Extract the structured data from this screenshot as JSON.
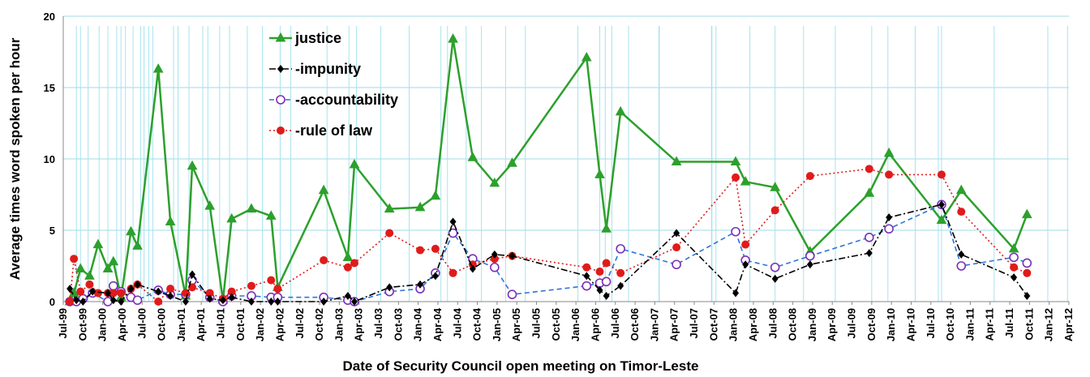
{
  "chart_data": {
    "type": "line",
    "title": "",
    "xlabel": "Date of Security Council open meeting on Timor-Leste",
    "ylabel": "Average times word spoken per hour",
    "ylim": [
      0,
      20
    ],
    "yticks": [
      "0",
      "5",
      "10",
      "15",
      "20"
    ],
    "xlim": [
      "1999-07",
      "2012-04"
    ],
    "xticks": [
      "Jul-99",
      "Oct-99",
      "Jan-00",
      "Apr-00",
      "Jul-00",
      "Oct-00",
      "Jan-01",
      "Apr-01",
      "Jul-01",
      "Oct-01",
      "Jan-02",
      "Apr-02",
      "Jul-02",
      "Oct-02",
      "Jan-03",
      "Apr-03",
      "Jul-03",
      "Oct-03",
      "Jan-04",
      "Apr-04",
      "Jul-04",
      "Oct-04",
      "Jan-05",
      "Apr-05",
      "Jul-05",
      "Oct-05",
      "Jan-06",
      "Apr-06",
      "Jul-06",
      "Oct-06",
      "Jan-07",
      "Apr-07",
      "Jul-07",
      "Oct-07",
      "Jan-08",
      "Apr-08",
      "Jul-08",
      "Oct-08",
      "Jan-09",
      "Apr-09",
      "Jul-09",
      "Oct-09",
      "Jan-10",
      "Apr-10",
      "Jul-10",
      "Oct-10",
      "Jan-11",
      "Apr-11",
      "Jul-11",
      "Oct-11",
      "Jan-12",
      "Apr-12"
    ],
    "grid": "horizontal",
    "legend_position": "top-left",
    "x": [
      "1999-09-01",
      "1999-09-20",
      "1999-10-25",
      "1999-12-15",
      "2000-01-25",
      "2000-03-05",
      "2000-03-25",
      "2000-04-15",
      "2000-05-20",
      "2000-06-25",
      "2000-07-10",
      "2000-08-01",
      "2000-08-20",
      "2000-11-25",
      "2000-12-15",
      "2001-02-05",
      "2001-04-08",
      "2001-05-01",
      "2001-06-25",
      "2001-08-10",
      "2001-11-01",
      "2002-01-10",
      "2002-04-01",
      "2002-05-20",
      "2002-11-05",
      "2003-02-15",
      "2003-03-20",
      "2003-07-10",
      "2003-11-20",
      "2004-04-15",
      "2004-05-15",
      "2004-08-10",
      "2004-10-20",
      "2005-02-10",
      "2005-05-10",
      "2006-01-10",
      "2006-04-20",
      "2006-05-15",
      "2006-06-15",
      "2006-09-01",
      "2007-01-20",
      "2007-01-22",
      "2007-09-20",
      "2007-09-22",
      "2007-10-10",
      "2008-03-15",
      "2008-07-10",
      "2008-11-20",
      "2009-04-15",
      "2009-10-01",
      "2009-12-15",
      "2010-04-20",
      "2010-08-05",
      "2010-08-20",
      "2011-04-20",
      "2011-12-25",
      "2012-03-25"
    ],
    "series": [
      {
        "name": "justice",
        "color": "#2ca02c",
        "marker": "triangle",
        "line": "solid",
        "points": [
          [
            "1999-08-01",
            0.0
          ],
          [
            "1999-08-20",
            0.6
          ],
          [
            "1999-09-20",
            2.3
          ],
          [
            "1999-11-01",
            1.8
          ],
          [
            "1999-12-10",
            4.0
          ],
          [
            "2000-01-25",
            2.3
          ],
          [
            "2000-02-20",
            2.8
          ],
          [
            "2000-03-25",
            0.3
          ],
          [
            "2000-05-10",
            4.9
          ],
          [
            "2000-06-10",
            3.9
          ],
          [
            "2000-09-15",
            16.3
          ],
          [
            "2000-11-10",
            5.6
          ],
          [
            "2001-01-20",
            0.4
          ],
          [
            "2001-02-20",
            9.5
          ],
          [
            "2001-05-10",
            6.7
          ],
          [
            "2001-07-10",
            0.1
          ],
          [
            "2001-08-20",
            5.8
          ],
          [
            "2001-11-20",
            6.5
          ],
          [
            "2002-02-20",
            6.0
          ],
          [
            "2002-03-20",
            1.0
          ],
          [
            "2002-10-20",
            7.8
          ],
          [
            "2003-02-10",
            3.1
          ],
          [
            "2003-03-10",
            9.6
          ],
          [
            "2003-08-20",
            6.5
          ],
          [
            "2004-01-10",
            6.6
          ],
          [
            "2004-03-20",
            7.4
          ],
          [
            "2004-06-10",
            18.4
          ],
          [
            "2004-09-10",
            10.1
          ],
          [
            "2004-12-20",
            8.3
          ],
          [
            "2005-03-10",
            9.7
          ],
          [
            "2006-02-20",
            17.1
          ],
          [
            "2006-04-20",
            8.9
          ],
          [
            "2006-05-20",
            5.1
          ],
          [
            "2006-07-25",
            13.3
          ],
          [
            "2007-04-10",
            9.8
          ],
          [
            "2008-01-10",
            9.8
          ],
          [
            "2008-02-25",
            8.4
          ],
          [
            "2008-07-10",
            8.0
          ],
          [
            "2008-12-20",
            3.5
          ],
          [
            "2009-09-20",
            7.6
          ],
          [
            "2009-12-20",
            10.4
          ],
          [
            "2010-08-20",
            5.7
          ],
          [
            "2010-11-20",
            7.8
          ],
          [
            "2011-07-20",
            3.7
          ],
          [
            "2011-09-20",
            6.1
          ]
        ]
      },
      {
        "name": "impunity",
        "color": "#000000",
        "marker": "diamond",
        "line": "dashdot",
        "points": [
          [
            "1999-08-01",
            0.9
          ],
          [
            "1999-09-01",
            0.1
          ],
          [
            "1999-10-01",
            0.0
          ],
          [
            "1999-11-15",
            0.7
          ],
          [
            "2000-01-25",
            0.6
          ],
          [
            "2000-02-20",
            0.1
          ],
          [
            "2000-03-25",
            0.0
          ],
          [
            "2000-05-10",
            0.9
          ],
          [
            "2000-06-10",
            1.2
          ],
          [
            "2000-09-15",
            0.7
          ],
          [
            "2000-11-10",
            0.4
          ],
          [
            "2001-01-20",
            0.0
          ],
          [
            "2001-02-20",
            1.9
          ],
          [
            "2001-05-10",
            0.2
          ],
          [
            "2001-07-10",
            0.1
          ],
          [
            "2001-08-20",
            0.3
          ],
          [
            "2001-11-20",
            0.0
          ],
          [
            "2002-02-20",
            0.0
          ],
          [
            "2002-03-20",
            0.0
          ],
          [
            "2002-10-20",
            0.0
          ],
          [
            "2003-02-10",
            0.4
          ],
          [
            "2003-03-10",
            0.0
          ],
          [
            "2003-08-20",
            1.0
          ],
          [
            "2004-01-10",
            1.2
          ],
          [
            "2004-03-20",
            1.8
          ],
          [
            "2004-06-10",
            5.6
          ],
          [
            "2004-09-10",
            2.3
          ],
          [
            "2004-12-20",
            3.3
          ],
          [
            "2005-03-10",
            3.2
          ],
          [
            "2006-02-20",
            1.8
          ],
          [
            "2006-04-20",
            0.8
          ],
          [
            "2006-05-20",
            0.4
          ],
          [
            "2006-07-25",
            1.1
          ],
          [
            "2007-04-10",
            4.8
          ],
          [
            "2008-01-10",
            0.6
          ],
          [
            "2008-02-25",
            2.6
          ],
          [
            "2008-07-10",
            1.6
          ],
          [
            "2008-12-20",
            2.6
          ],
          [
            "2009-09-20",
            3.4
          ],
          [
            "2009-12-20",
            5.9
          ],
          [
            "2010-08-20",
            6.8
          ],
          [
            "2010-11-20",
            3.3
          ],
          [
            "2011-07-20",
            1.7
          ],
          [
            "2011-09-20",
            0.4
          ]
        ]
      },
      {
        "name": "accountability",
        "color": "#2e75d6",
        "marker": "open-circle",
        "line": "dashed",
        "points": [
          [
            "1999-08-01",
            0.0
          ],
          [
            "1999-09-01",
            0.0
          ],
          [
            "1999-10-01",
            0.2
          ],
          [
            "1999-11-15",
            0.6
          ],
          [
            "2000-01-25",
            0.0
          ],
          [
            "2000-02-20",
            1.1
          ],
          [
            "2000-03-25",
            0.7
          ],
          [
            "2000-05-10",
            0.3
          ],
          [
            "2000-06-10",
            0.1
          ],
          [
            "2000-09-15",
            0.8
          ],
          [
            "2000-11-10",
            0.5
          ],
          [
            "2001-01-20",
            0.5
          ],
          [
            "2001-02-20",
            1.5
          ],
          [
            "2001-05-10",
            0.3
          ],
          [
            "2001-07-10",
            0.0
          ],
          [
            "2001-08-20",
            0.4
          ],
          [
            "2001-11-20",
            0.4
          ],
          [
            "2002-02-20",
            0.3
          ],
          [
            "2002-03-20",
            0.3
          ],
          [
            "2002-10-20",
            0.3
          ],
          [
            "2003-02-10",
            0.1
          ],
          [
            "2003-03-10",
            0.0
          ],
          [
            "2003-08-20",
            0.7
          ],
          [
            "2004-01-10",
            0.9
          ],
          [
            "2004-03-20",
            2.0
          ],
          [
            "2004-06-10",
            4.8
          ],
          [
            "2004-09-10",
            3.0
          ],
          [
            "2004-12-20",
            2.4
          ],
          [
            "2005-03-10",
            0.5
          ],
          [
            "2006-02-20",
            1.1
          ],
          [
            "2006-04-20",
            1.3
          ],
          [
            "2006-05-20",
            1.4
          ],
          [
            "2006-07-25",
            3.7
          ],
          [
            "2007-04-10",
            2.6
          ],
          [
            "2008-01-10",
            4.9
          ],
          [
            "2008-02-25",
            2.9
          ],
          [
            "2008-07-10",
            2.4
          ],
          [
            "2008-12-20",
            3.2
          ],
          [
            "2009-09-20",
            4.5
          ],
          [
            "2009-12-20",
            5.1
          ],
          [
            "2010-08-20",
            6.8
          ],
          [
            "2010-11-20",
            2.5
          ],
          [
            "2011-07-20",
            3.1
          ],
          [
            "2011-09-20",
            2.7
          ]
        ]
      },
      {
        "name": "rule of law",
        "color": "#e01b1b",
        "marker": "filled-circle",
        "line": "dotted",
        "points": [
          [
            "1999-08-01",
            0.0
          ],
          [
            "1999-08-20",
            3.0
          ],
          [
            "1999-09-20",
            0.7
          ],
          [
            "1999-11-01",
            1.2
          ],
          [
            "1999-12-10",
            0.6
          ],
          [
            "2000-01-25",
            0.6
          ],
          [
            "2000-02-20",
            0.6
          ],
          [
            "2000-03-25",
            0.6
          ],
          [
            "2000-05-10",
            0.9
          ],
          [
            "2000-06-10",
            1.2
          ],
          [
            "2000-09-15",
            0.0
          ],
          [
            "2000-11-10",
            0.9
          ],
          [
            "2001-01-20",
            0.6
          ],
          [
            "2001-02-20",
            1.0
          ],
          [
            "2001-05-10",
            0.6
          ],
          [
            "2001-07-10",
            0.2
          ],
          [
            "2001-08-20",
            0.7
          ],
          [
            "2001-11-20",
            1.1
          ],
          [
            "2002-02-20",
            1.5
          ],
          [
            "2002-03-20",
            0.9
          ],
          [
            "2002-10-20",
            2.9
          ],
          [
            "2003-02-10",
            2.4
          ],
          [
            "2003-03-10",
            2.7
          ],
          [
            "2003-08-20",
            4.8
          ],
          [
            "2004-01-10",
            3.6
          ],
          [
            "2004-03-20",
            3.7
          ],
          [
            "2004-06-10",
            2.0
          ],
          [
            "2004-09-10",
            2.6
          ],
          [
            "2004-12-20",
            3.0
          ],
          [
            "2005-03-10",
            3.2
          ],
          [
            "2006-02-20",
            2.4
          ],
          [
            "2006-04-20",
            2.1
          ],
          [
            "2006-05-20",
            2.7
          ],
          [
            "2006-07-25",
            2.0
          ],
          [
            "2007-04-10",
            3.8
          ],
          [
            "2008-01-10",
            8.7
          ],
          [
            "2008-02-25",
            4.0
          ],
          [
            "2008-07-10",
            6.4
          ],
          [
            "2008-12-20",
            8.8
          ],
          [
            "2009-09-20",
            9.3
          ],
          [
            "2009-12-20",
            8.9
          ],
          [
            "2010-08-20",
            8.9
          ],
          [
            "2010-11-20",
            6.3
          ],
          [
            "2011-07-20",
            2.4
          ],
          [
            "2011-09-20",
            2.0
          ]
        ]
      }
    ]
  }
}
